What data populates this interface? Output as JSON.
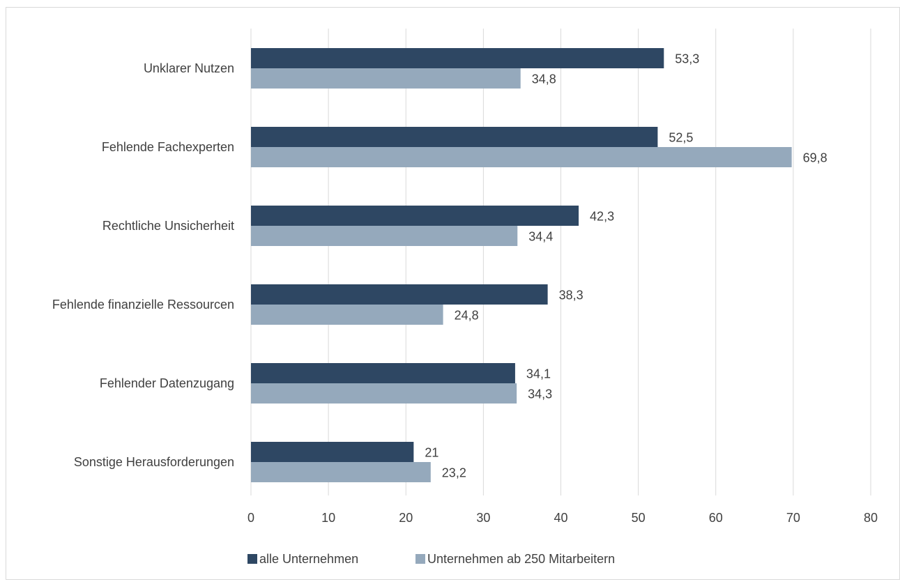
{
  "chart_data": {
    "type": "bar",
    "orientation": "horizontal",
    "title": "",
    "xlabel": "",
    "ylabel": "",
    "categories": [
      "Unklarer Nutzen",
      "Fehlende Fachexperten",
      "Rechtliche Unsicherheit",
      "Fehlende finanzielle Ressourcen",
      "Fehlender Datenzugang",
      "Sonstige Herausforderungen"
    ],
    "series": [
      {
        "name": "alle Unternehmen",
        "values": [
          53.3,
          52.5,
          42.3,
          38.3,
          34.1,
          21
        ],
        "labels": [
          "53,3",
          "52,5",
          "42,3",
          "38,3",
          "34,1",
          "21"
        ],
        "color": "#2e4763"
      },
      {
        "name": "Unternehmen ab 250 Mitarbeitern",
        "values": [
          34.8,
          69.8,
          34.4,
          24.8,
          34.3,
          23.2
        ],
        "labels": [
          "34,8",
          "69,8",
          "34,4",
          "24,8",
          "34,3",
          "23,2"
        ],
        "color": "#95a9bc"
      }
    ],
    "xlim": [
      0,
      80
    ],
    "xticks": [
      0,
      10,
      20,
      30,
      40,
      50,
      60,
      70,
      80
    ],
    "grid": true,
    "gridColor": "#d9d9d9",
    "legend": "bottom"
  }
}
